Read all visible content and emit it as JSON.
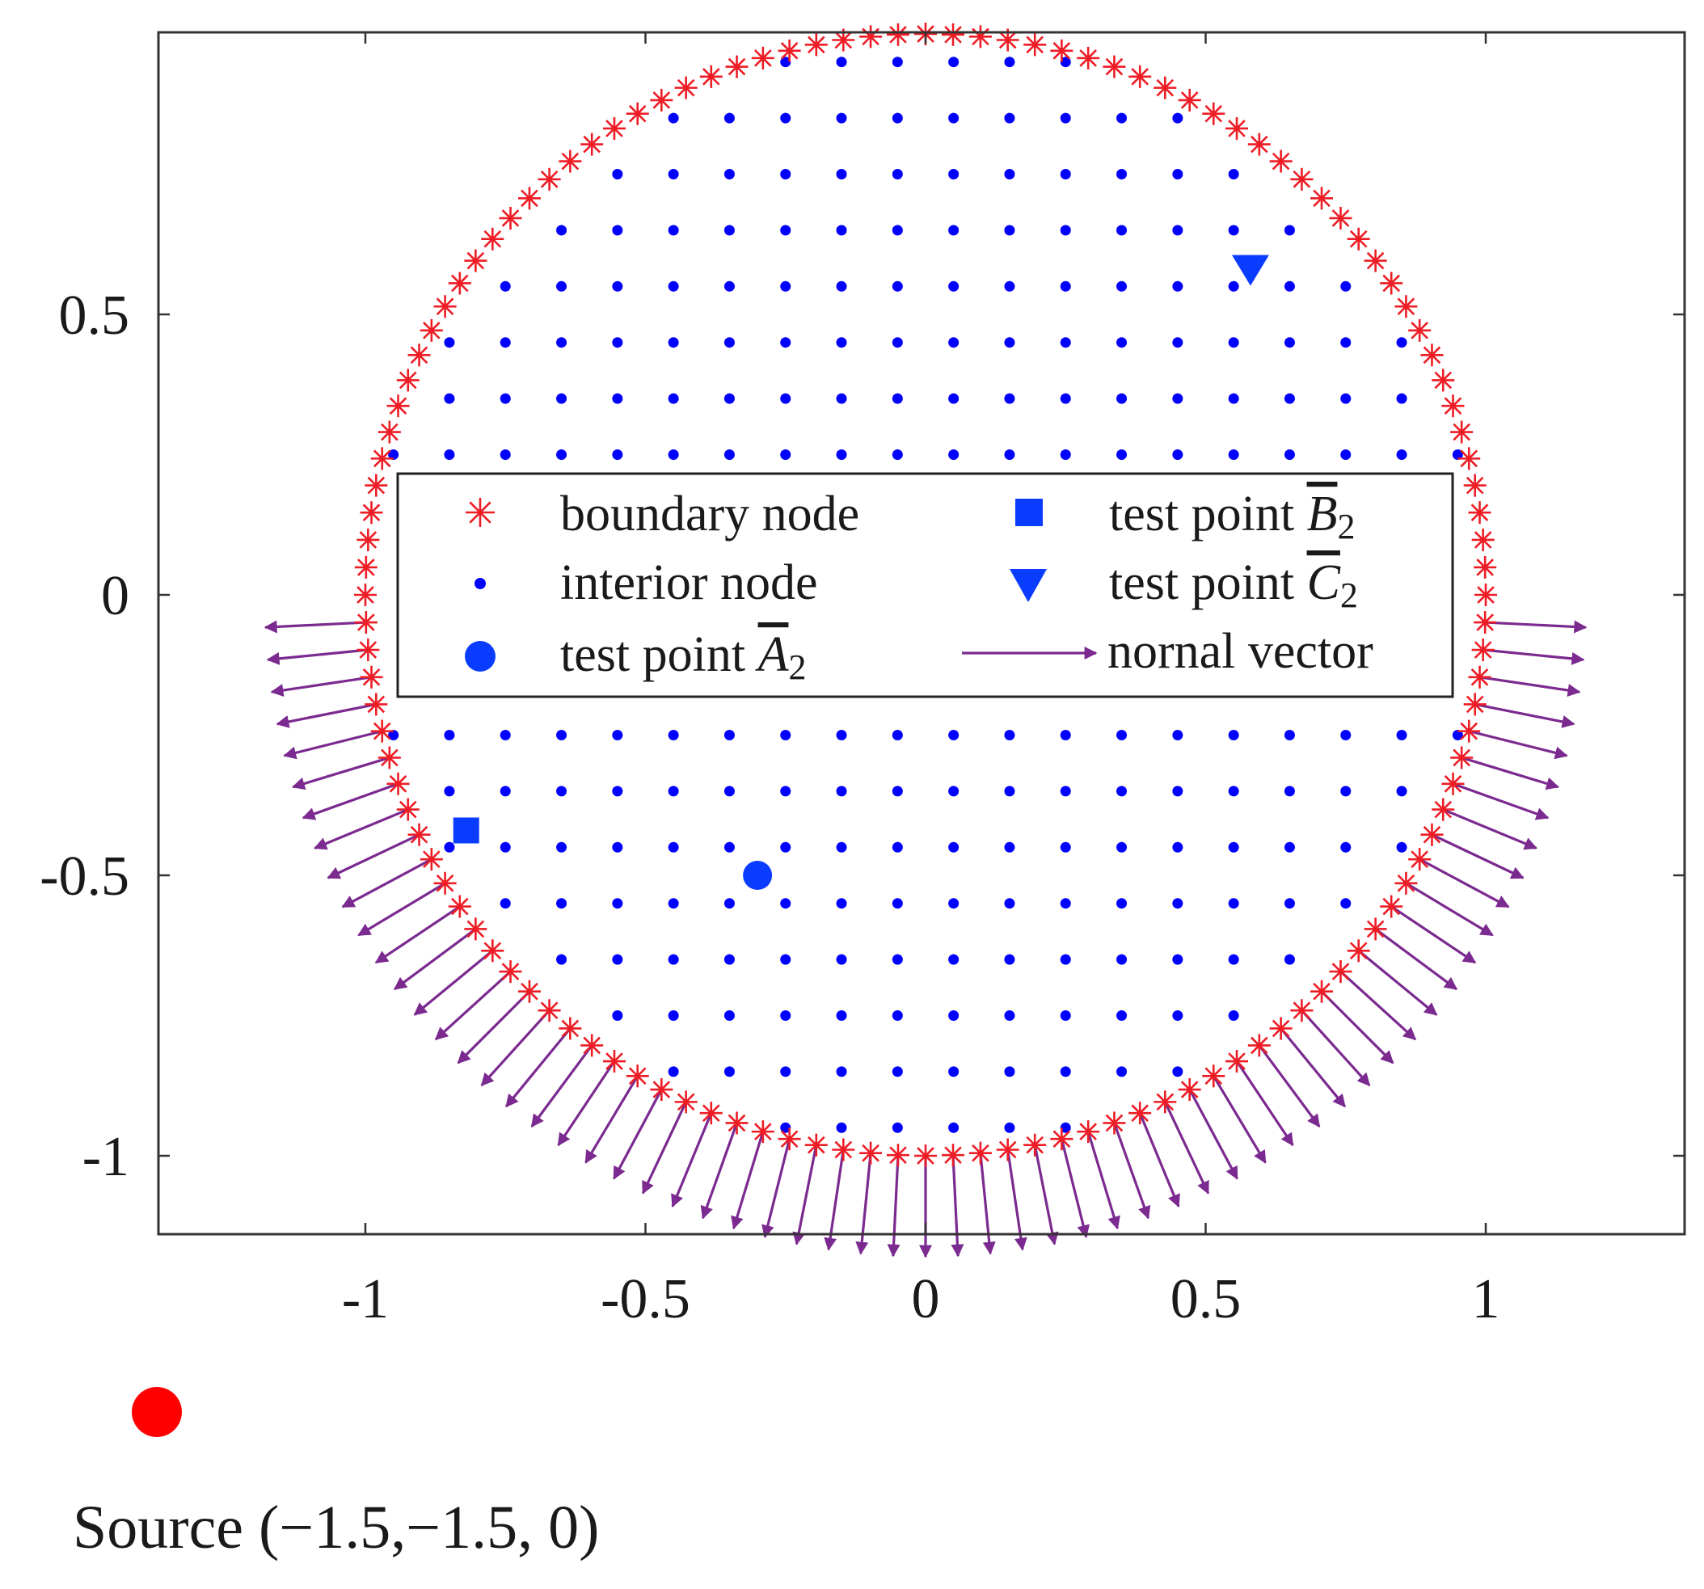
{
  "chart_data": {
    "type": "scatter",
    "title": "",
    "xlabel": "",
    "ylabel": "",
    "xlim": [
      -1.36,
      1.36
    ],
    "ylim": [
      -1.14,
      1.0
    ],
    "xticks": [
      -1,
      -0.5,
      0,
      0.5,
      1
    ],
    "xtick_labels": [
      "-1",
      "-0.5",
      "0",
      "0.5",
      "1"
    ],
    "yticks": [
      -1,
      -0.5,
      0,
      0.5
    ],
    "ytick_labels": [
      "-1",
      "-0.5",
      "0",
      "0.5"
    ],
    "grid": false,
    "legend_placement": "center",
    "legend": {
      "columns": 2,
      "entries": [
        {
          "key": "boundary",
          "text": "boundary node"
        },
        {
          "key": "interior",
          "text": "interior node"
        },
        {
          "key": "testA",
          "text": "test point ",
          "symbol": "A",
          "subscript": "2"
        },
        {
          "key": "testB",
          "text": "test point ",
          "symbol": "B",
          "subscript": "2"
        },
        {
          "key": "testC",
          "text": "test point ",
          "symbol": "C",
          "subscript": "2"
        },
        {
          "key": "normal",
          "text": "nornal vector"
        }
      ]
    },
    "colors": {
      "boundary": "#ee1c24",
      "interior": "#0000ff",
      "test": "#0a3cff",
      "normal": "#7b2a8f",
      "source": "#ff0000"
    },
    "boundary_nodes": {
      "shape": "circle",
      "center": [
        0,
        0
      ],
      "radius": 1,
      "count": 128
    },
    "interior_nodes": {
      "grid_spacing": 0.1,
      "x_start": -0.95,
      "y_start": -0.95,
      "exclude_band_y": [
        -0.2,
        0.2
      ],
      "inside_radius": 0.99
    },
    "normal_vectors": {
      "on_boundary_y_below": -0.02,
      "length": 0.18
    },
    "series": [
      {
        "name": "test point A2",
        "marker": "circle",
        "points": [
          [
            -0.3,
            -0.5
          ]
        ]
      },
      {
        "name": "test point B2",
        "marker": "square",
        "points": [
          [
            -0.82,
            -0.42
          ]
        ]
      },
      {
        "name": "test point C2",
        "marker": "triangle-down",
        "points": [
          [
            0.58,
            0.58
          ]
        ]
      }
    ],
    "source": {
      "x": -1.5,
      "y": -1.5,
      "label": "Source",
      "coords": "(−1.5,−1.5,  0)"
    }
  }
}
